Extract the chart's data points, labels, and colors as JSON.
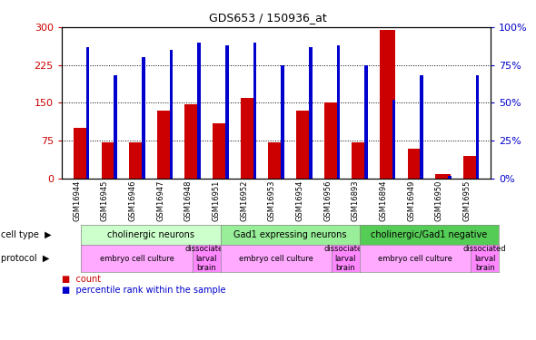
{
  "title": "GDS653 / 150936_at",
  "samples": [
    "GSM16944",
    "GSM16945",
    "GSM16946",
    "GSM16947",
    "GSM16948",
    "GSM16951",
    "GSM16952",
    "GSM16953",
    "GSM16954",
    "GSM16956",
    "GSM16893",
    "GSM16894",
    "GSM16949",
    "GSM16950",
    "GSM16955"
  ],
  "count": [
    100,
    72,
    72,
    135,
    148,
    110,
    160,
    72,
    135,
    150,
    72,
    295,
    60,
    8,
    45
  ],
  "percentile": [
    87,
    68,
    80,
    85,
    90,
    88,
    90,
    75,
    87,
    88,
    75,
    52,
    68,
    2,
    68
  ],
  "ylim_left": [
    0,
    300
  ],
  "ylim_right": [
    0,
    100
  ],
  "yticks_left": [
    0,
    75,
    150,
    225,
    300
  ],
  "yticks_right": [
    0,
    25,
    50,
    75,
    100
  ],
  "cell_type_groups": [
    {
      "label": "cholinergic neurons",
      "start": 0,
      "end": 5,
      "color": "#ccffcc"
    },
    {
      "label": "Gad1 expressing neurons",
      "start": 5,
      "end": 10,
      "color": "#99ee99"
    },
    {
      "label": "cholinergic/Gad1 negative",
      "start": 10,
      "end": 15,
      "color": "#55cc55"
    }
  ],
  "protocol_groups": [
    {
      "label": "embryo cell culture",
      "start": 0,
      "end": 4,
      "color": "#ffaaff"
    },
    {
      "label": "dissociated\nlarval\nbrain",
      "start": 4,
      "end": 5,
      "color": "#ff88ff"
    },
    {
      "label": "embryo cell culture",
      "start": 5,
      "end": 9,
      "color": "#ffaaff"
    },
    {
      "label": "dissociated\nlarval\nbrain",
      "start": 9,
      "end": 10,
      "color": "#ff88ff"
    },
    {
      "label": "embryo cell culture",
      "start": 10,
      "end": 14,
      "color": "#ffaaff"
    },
    {
      "label": "dissociated\nlarval\nbrain",
      "start": 14,
      "end": 15,
      "color": "#ff88ff"
    }
  ],
  "red_bar_width": 0.55,
  "blue_bar_width": 0.12,
  "count_color": "#cc0000",
  "percentile_color": "#0000cc",
  "bg_color": "#ffffff"
}
